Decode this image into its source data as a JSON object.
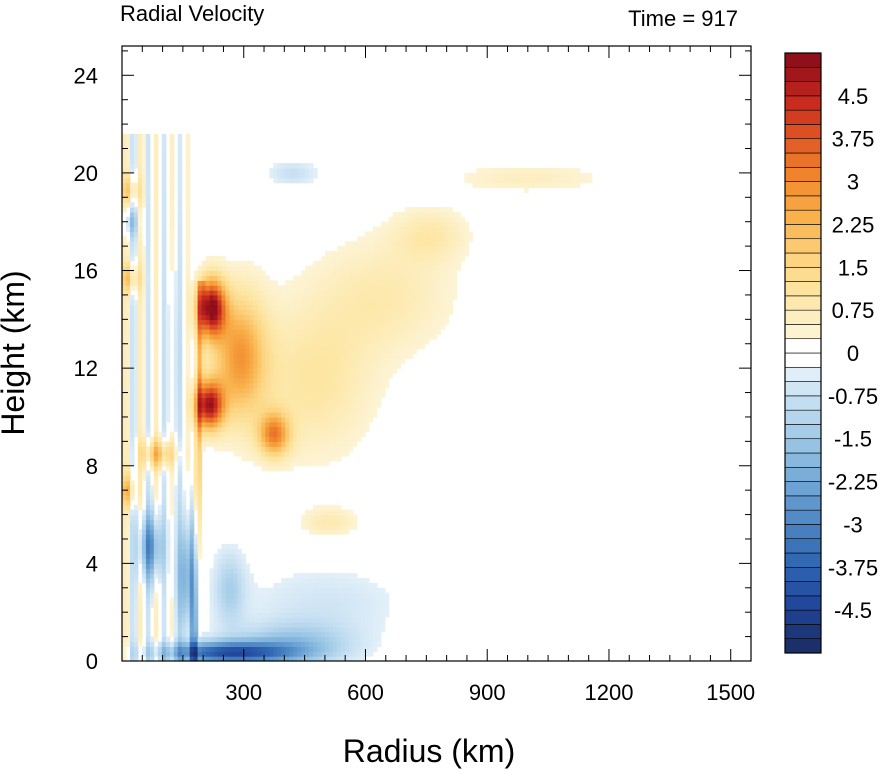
{
  "chart_data": {
    "type": "heatmap",
    "title": "Radial Velocity",
    "subtitle": "Time = 917",
    "xlabel": "Radius (km)",
    "ylabel": "Height (km)",
    "xlim": [
      0,
      1550
    ],
    "ylim": [
      0,
      25.2
    ],
    "x_ticks": [
      300,
      600,
      900,
      1200,
      1500
    ],
    "x_tick_labels": [
      "300",
      "600",
      "900",
      "1200",
      "1500"
    ],
    "y_ticks": [
      0,
      4,
      8,
      12,
      16,
      20,
      24
    ],
    "y_tick_labels": [
      "0",
      "4",
      "8",
      "12",
      "16",
      "20",
      "24"
    ],
    "grid": false,
    "colorbar": {
      "min": -5.25,
      "max": 5.25,
      "step": 0.25,
      "label_values": [
        4.5,
        3.75,
        3,
        2.25,
        1.5,
        0.75,
        0,
        -0.75,
        -1.5,
        -2.25,
        -3,
        -3.75,
        -4.5
      ],
      "labels": [
        "4.5",
        "3.75",
        "3",
        "2.25",
        "1.5",
        "0.75",
        "0",
        "-0.75",
        "-1.5",
        "-2.25",
        "-3",
        "-3.75",
        "-4.5"
      ],
      "negative_colors": [
        "#1b2f6b",
        "#21469c",
        "#2e64b0",
        "#4a83c3",
        "#6da4d4",
        "#93c1e2",
        "#bcdaef",
        "#e3f0f9"
      ],
      "positive_colors": [
        "#fdf4d6",
        "#fde7a6",
        "#fcd37f",
        "#f9b24c",
        "#f18a2e",
        "#e05a24",
        "#c8281e",
        "#8f0f1a"
      ]
    },
    "features": [
      {
        "kind": "outflow",
        "r": 220,
        "z": 14.5,
        "sr": 35,
        "sz": 1.2,
        "v": 4.9
      },
      {
        "kind": "outflow",
        "r": 215,
        "z": 10.5,
        "sr": 35,
        "sz": 1.0,
        "v": 4.5
      },
      {
        "kind": "outflow",
        "r": 290,
        "z": 12.5,
        "sr": 65,
        "sz": 2.6,
        "v": 2.6
      },
      {
        "kind": "outflow",
        "r": 375,
        "z": 9.3,
        "sr": 38,
        "sz": 0.9,
        "v": 2.8
      },
      {
        "kind": "outflow",
        "r": 470,
        "z": 11.5,
        "sr": 150,
        "sz": 3.2,
        "v": 1.0
      },
      {
        "kind": "outflow",
        "r": 650,
        "z": 15.0,
        "sr": 170,
        "sz": 2.4,
        "v": 0.8
      },
      {
        "kind": "outflow",
        "r": 760,
        "z": 17.5,
        "sr": 90,
        "sz": 1.1,
        "v": 0.8
      },
      {
        "kind": "outflow",
        "r": 1000,
        "z": 19.8,
        "sr": 190,
        "sz": 0.6,
        "v": 0.6
      },
      {
        "kind": "outflow",
        "r": 20,
        "z": 15.7,
        "sr": 25,
        "sz": 0.6,
        "v": 1.6
      },
      {
        "kind": "outflow",
        "r": 20,
        "z": 19.3,
        "sr": 25,
        "sz": 0.6,
        "v": 1.4
      },
      {
        "kind": "outflow",
        "r": 90,
        "z": 8.5,
        "sr": 45,
        "sz": 0.6,
        "v": 2.0
      },
      {
        "kind": "outflow",
        "r": 510,
        "z": 5.7,
        "sr": 70,
        "sz": 0.6,
        "v": 0.8
      },
      {
        "kind": "outflow",
        "r": 15,
        "z": 7.0,
        "sr": 20,
        "sz": 0.7,
        "v": 1.8
      },
      {
        "kind": "inflow",
        "r": 260,
        "z": 0.35,
        "sr": 160,
        "sz": 0.45,
        "v": -3.8
      },
      {
        "kind": "inflow",
        "r": 420,
        "z": 0.7,
        "sr": 150,
        "sz": 0.9,
        "v": -1.5
      },
      {
        "kind": "inflow",
        "r": 500,
        "z": 2.4,
        "sr": 190,
        "sz": 1.5,
        "v": -0.6
      },
      {
        "kind": "inflow",
        "r": 70,
        "z": 4.7,
        "sr": 30,
        "sz": 1.4,
        "v": -2.6
      },
      {
        "kind": "inflow",
        "r": 160,
        "z": 3.5,
        "sr": 25,
        "sz": 2.5,
        "v": -2.2
      },
      {
        "kind": "inflow",
        "r": 265,
        "z": 3.0,
        "sr": 40,
        "sz": 1.6,
        "v": -1.2
      },
      {
        "kind": "inflow",
        "r": 20,
        "z": 18.0,
        "sr": 22,
        "sz": 0.6,
        "v": -1.2
      },
      {
        "kind": "inflow",
        "r": 420,
        "z": 20.0,
        "sr": 60,
        "sz": 0.5,
        "v": -0.8
      },
      {
        "kind": "inflow",
        "r": 130,
        "z": 12.0,
        "sr": 30,
        "sz": 5.0,
        "v": -0.5
      }
    ],
    "eyewall": {
      "r_base": 180,
      "r_top": 195,
      "z_base": 0,
      "z_top": 15.6,
      "width": 8,
      "v": 1.8
    },
    "eye_inflow_jet": {
      "r": 178,
      "z_base": 0,
      "z_top": 7.5,
      "width": 7,
      "v": -4.8
    },
    "data_extent": {
      "r_max_nonzero": 1150,
      "z_max_nonzero": 21.8
    }
  }
}
